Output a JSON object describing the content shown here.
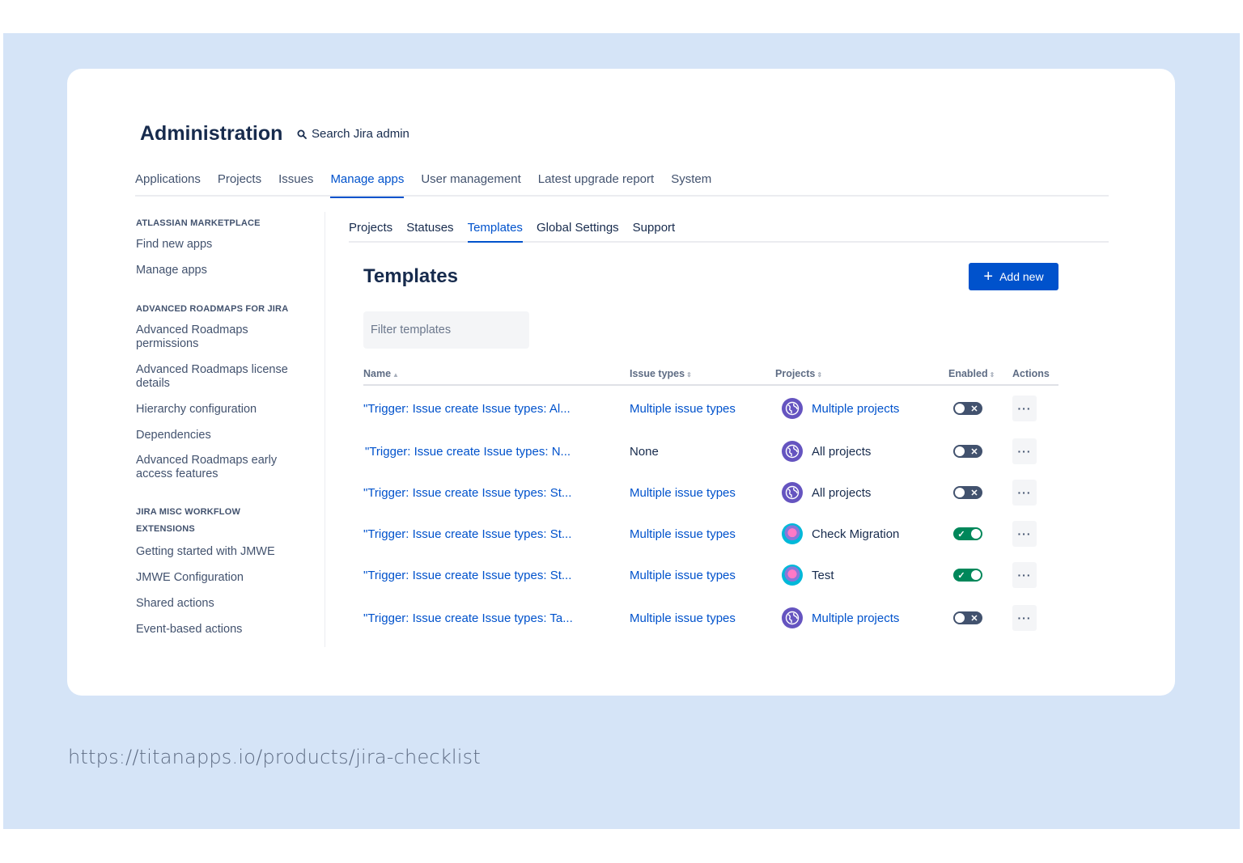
{
  "admin": {
    "title": "Administration",
    "search_label": "Search Jira admin"
  },
  "top_nav": [
    "Applications",
    "Projects",
    "Issues",
    "Manage apps",
    "User management",
    "Latest upgrade report",
    "System"
  ],
  "top_nav_active": "Manage apps",
  "sidebar": {
    "groups": [
      {
        "heading": "ATLASSIAN MARKETPLACE",
        "items": [
          "Find new apps",
          "Manage apps"
        ]
      },
      {
        "heading": "ADVANCED ROADMAPS FOR JIRA",
        "items": [
          "Advanced Roadmaps permissions",
          "Advanced Roadmaps license details",
          "Hierarchy configuration",
          "Dependencies",
          "Advanced Roadmaps early access features"
        ]
      },
      {
        "heading": "JIRA MISC WORKFLOW EXTENSIONS",
        "items": [
          "Getting started with JMWE",
          "JMWE Configuration",
          "Shared actions",
          "Event-based actions"
        ]
      }
    ]
  },
  "sub_nav": [
    "Projects",
    "Statuses",
    "Templates",
    "Global Settings",
    "Support"
  ],
  "sub_nav_active": "Templates",
  "page": {
    "title": "Templates",
    "add_button": "Add new",
    "filter_placeholder": "Filter templates"
  },
  "table": {
    "columns": [
      "Name",
      "Issue types",
      "Projects",
      "Enabled",
      "Actions"
    ],
    "rows": [
      {
        "name": "\"Trigger: Issue create Issue types: Al...",
        "issue_types": "Multiple issue types",
        "issue_types_link": true,
        "project": "Multiple projects",
        "project_link": true,
        "project_icon": "globe-icon",
        "enabled": false
      },
      {
        "name": "\"Trigger: Issue create Issue types: N...",
        "issue_types": "None",
        "issue_types_link": false,
        "project": "All projects",
        "project_link": false,
        "project_icon": "globe-icon",
        "enabled": false
      },
      {
        "name": "\"Trigger: Issue create Issue types: St...",
        "issue_types": "Multiple issue types",
        "issue_types_link": true,
        "project": "All projects",
        "project_link": false,
        "project_icon": "globe-icon",
        "enabled": false
      },
      {
        "name": "\"Trigger: Issue create Issue types: St...",
        "issue_types": "Multiple issue types",
        "issue_types_link": true,
        "project": "Check Migration",
        "project_link": false,
        "project_icon": "project-avatar-icon",
        "enabled": true
      },
      {
        "name": "\"Trigger: Issue create Issue types: St...",
        "issue_types": "Multiple issue types",
        "issue_types_link": true,
        "project": "Test",
        "project_link": false,
        "project_icon": "project-avatar-icon",
        "enabled": true
      },
      {
        "name": "\"Trigger: Issue create Issue types: Ta...",
        "issue_types": "Multiple issue types",
        "issue_types_link": true,
        "project": "Multiple projects",
        "project_link": true,
        "project_icon": "globe-icon",
        "enabled": false
      }
    ],
    "actions_label": "···"
  },
  "footer_url": "https://titanapps.io/products/jira-checklist",
  "colors": {
    "background_panel": "#d5e4f7",
    "link": "#0052cc",
    "primary_button": "#0052cc",
    "toggle_on": "#00875a",
    "toggle_off": "#42526e",
    "globe_icon": "#6554c0"
  }
}
